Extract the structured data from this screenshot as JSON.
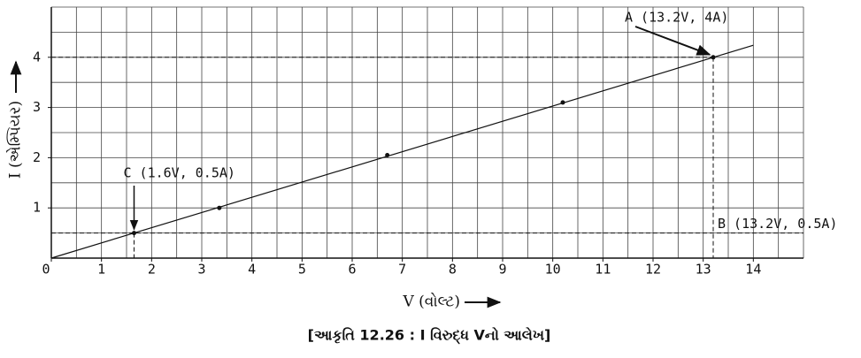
{
  "chart_data": {
    "type": "scatter",
    "title": "[આકૃતિ 12.26 : I વિરુદ્ધ Vનો આલેખ]",
    "x_label": "V (વોલ્ટ)",
    "y_label": "I (એમ્પિયર)",
    "x": [
      1.65,
      3.35,
      6.7,
      10.2,
      13.2
    ],
    "values": [
      0.5,
      1,
      2.05,
      3.1,
      4
    ],
    "line": {
      "x": [
        0,
        14
      ],
      "values": [
        0,
        4.24
      ]
    },
    "color": "#111111",
    "xlim": [
      0,
      15
    ],
    "ylim": [
      0,
      5
    ],
    "xticks": [
      0,
      1,
      2,
      3,
      4,
      5,
      6,
      7,
      8,
      9,
      10,
      11,
      12,
      13,
      14
    ],
    "yticks": [
      1,
      2,
      3,
      4
    ],
    "grid": true,
    "xgrid": [
      0.5,
      1,
      1.5,
      2,
      2.5,
      3,
      3.5,
      4,
      4.5,
      5,
      5.5,
      6,
      6.5,
      7,
      7.5,
      8,
      8.5,
      9,
      9.5,
      10,
      10.5,
      11,
      11.5,
      12,
      12.5,
      13,
      13.5,
      14,
      14.5,
      15
    ],
    "ygrid": [
      0.5,
      1,
      1.5,
      2,
      2.5,
      3,
      3.5,
      4,
      4.5,
      5
    ],
    "annotations": [
      "A (13.2V, 4A)",
      "B (13.2V, 0.5A)",
      "C (1.6V, 0.5A)"
    ]
  }
}
